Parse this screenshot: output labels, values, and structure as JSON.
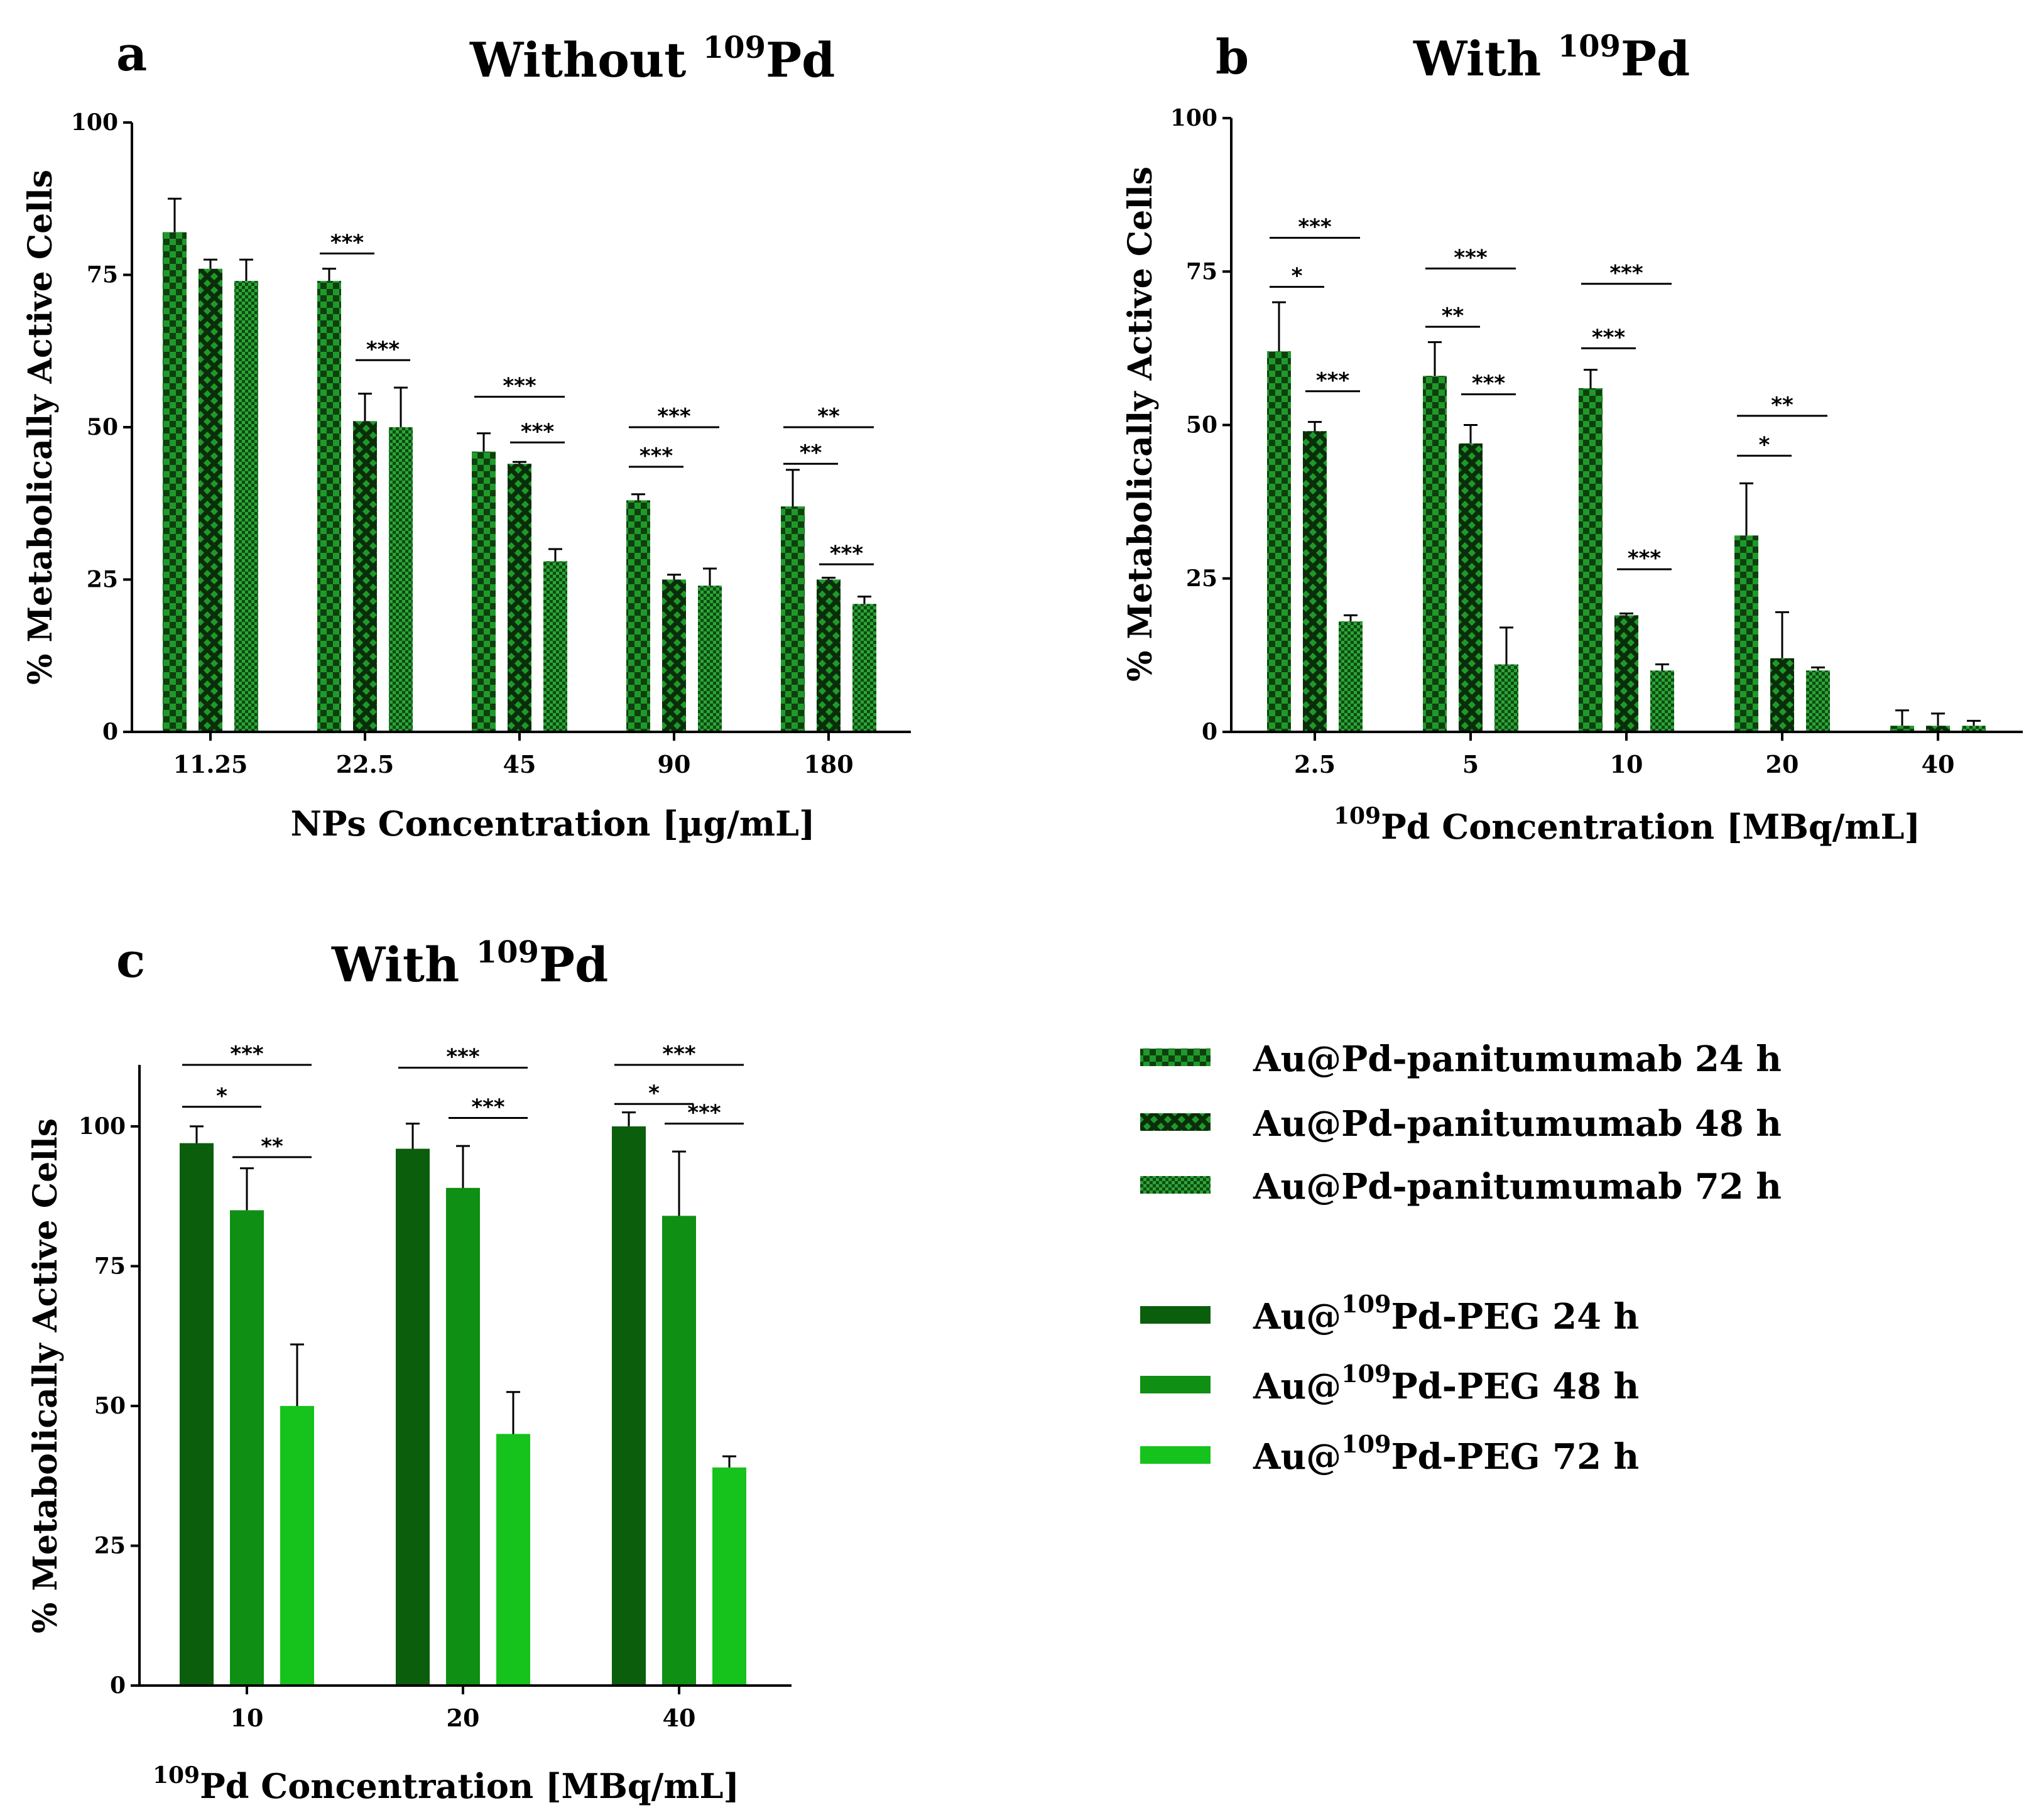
{
  "colors": {
    "dark": "#0b5e0b",
    "mid": "#0f8f14",
    "light": "#16c21c",
    "pattern_dark": "#0f4f0f",
    "pattern_light": "#1f9a2a",
    "axis": "#000000"
  },
  "chart_data": [
    {
      "panel": "a",
      "type": "bar",
      "title": "Without ",
      "title_sup": "109",
      "title_suffix": "Pd",
      "xlabel": "NPs Concentration [µg/mL]",
      "ylabel": "% Metabolically Active Cells",
      "ylim": [
        0,
        100
      ],
      "yticks": [
        "0",
        "25",
        "50",
        "75",
        "100"
      ],
      "categories": [
        "11.25",
        "22.5",
        "45",
        "90",
        "180"
      ],
      "series": [
        {
          "name": "Au@Pd-panitumumab 24 h",
          "pattern": "checker",
          "values": [
            82,
            74,
            46,
            38,
            37
          ],
          "errors": [
            5.5,
            2,
            3,
            1,
            6
          ]
        },
        {
          "name": "Au@Pd-panitumumab 48 h",
          "pattern": "cross",
          "values": [
            76,
            51,
            44,
            25,
            25
          ],
          "errors": [
            1.5,
            4.5,
            0.3,
            0.8,
            0.3
          ]
        },
        {
          "name": "Au@Pd-panitumumab 72 h",
          "pattern": "small",
          "values": [
            74,
            50,
            28,
            24,
            21
          ],
          "errors": [
            3.5,
            6.5,
            2,
            2.8,
            1.2
          ]
        }
      ],
      "significance": [
        {
          "group": 1,
          "from": 0,
          "to": 1,
          "y": 78.5,
          "label": "***"
        },
        {
          "group": 1,
          "from": 1,
          "to": 2,
          "y": 61,
          "label": "***"
        },
        {
          "group": 2,
          "from": 0,
          "to": 2,
          "y": 55,
          "label": "***"
        },
        {
          "group": 2,
          "from": 1,
          "to": 2,
          "y": 47.5,
          "label": "***"
        },
        {
          "group": 3,
          "from": 0,
          "to": 2,
          "y": 50,
          "label": "***"
        },
        {
          "group": 3,
          "from": 0,
          "to": 1,
          "y": 43.5,
          "label": "***"
        },
        {
          "group": 4,
          "from": 0,
          "to": 2,
          "y": 50,
          "label": "**"
        },
        {
          "group": 4,
          "from": 0,
          "to": 1,
          "y": 44,
          "label": "**"
        },
        {
          "group": 4,
          "from": 1,
          "to": 2,
          "y": 27.5,
          "label": "***"
        }
      ]
    },
    {
      "panel": "b",
      "type": "bar",
      "title": "With ",
      "title_sup": "109",
      "title_suffix": "Pd",
      "xlabel": "Pd Concentration [MBq/mL]",
      "xlabel_sup": "109",
      "ylabel": "% Metabolically Active Cells",
      "ylim": [
        0,
        100
      ],
      "yticks": [
        "0",
        "25",
        "50",
        "75",
        "100"
      ],
      "categories": [
        "2.5",
        "5",
        "10",
        "20",
        "40"
      ],
      "series": [
        {
          "name": "Au@Pd-panitumumab 24 h",
          "pattern": "checker",
          "values": [
            62,
            58,
            56,
            32,
            1
          ],
          "errors": [
            8,
            5.5,
            3,
            8.5,
            2.5
          ]
        },
        {
          "name": "Au@Pd-panitumumab 48 h",
          "pattern": "cross",
          "values": [
            49,
            47,
            19,
            12,
            1
          ],
          "errors": [
            1.5,
            3,
            0.3,
            7.5,
            2
          ]
        },
        {
          "name": "Au@Pd-panitumumab 72 h",
          "pattern": "small",
          "values": [
            18,
            11,
            10,
            10,
            1
          ],
          "errors": [
            1,
            6,
            1,
            0.5,
            0.8
          ]
        }
      ],
      "significance": [
        {
          "group": 0,
          "from": 0,
          "to": 2,
          "y": 80.5,
          "label": "***"
        },
        {
          "group": 0,
          "from": 0,
          "to": 1,
          "y": 72.5,
          "label": "*"
        },
        {
          "group": 0,
          "from": 1,
          "to": 2,
          "y": 55.5,
          "label": "***"
        },
        {
          "group": 1,
          "from": 0,
          "to": 2,
          "y": 75.5,
          "label": "***"
        },
        {
          "group": 1,
          "from": 0,
          "to": 1,
          "y": 66,
          "label": "**"
        },
        {
          "group": 1,
          "from": 1,
          "to": 2,
          "y": 55,
          "label": "***"
        },
        {
          "group": 2,
          "from": 0,
          "to": 2,
          "y": 73,
          "label": "***"
        },
        {
          "group": 2,
          "from": 0,
          "to": 1,
          "y": 62.5,
          "label": "***"
        },
        {
          "group": 2,
          "from": 1,
          "to": 2,
          "y": 26.5,
          "label": "***"
        },
        {
          "group": 3,
          "from": 0,
          "to": 2,
          "y": 51.5,
          "label": "**"
        },
        {
          "group": 3,
          "from": 0,
          "to": 1,
          "y": 45,
          "label": "*"
        }
      ]
    },
    {
      "panel": "c",
      "type": "bar",
      "title": "With ",
      "title_sup": "109",
      "title_suffix": "Pd",
      "xlabel": "Pd Concentration [MBq/mL]",
      "xlabel_sup": "109",
      "ylabel": "% Metabolically Active Cells",
      "ylim": [
        0,
        100
      ],
      "yticks": [
        "0",
        "25",
        "50",
        "75",
        "100"
      ],
      "categories": [
        "10",
        "20",
        "40"
      ],
      "series": [
        {
          "name": "Au@109Pd-PEG 24 h",
          "pattern": "solid-dark",
          "values": [
            97,
            96,
            100
          ],
          "errors": [
            3,
            4.5,
            2.5
          ]
        },
        {
          "name": "Au@109Pd-PEG 48 h",
          "pattern": "solid-mid",
          "values": [
            85,
            89,
            84
          ],
          "errors": [
            7.5,
            7.5,
            11.5
          ]
        },
        {
          "name": "Au@109Pd-PEG 72 h",
          "pattern": "solid-light",
          "values": [
            50,
            45,
            39
          ],
          "errors": [
            11,
            7.5,
            2
          ]
        }
      ],
      "significance": [
        {
          "group": 0,
          "from": 0,
          "to": 2,
          "y": 111,
          "label": "***"
        },
        {
          "group": 0,
          "from": 0,
          "to": 1,
          "y": 103.5,
          "label": "*"
        },
        {
          "group": 0,
          "from": 1,
          "to": 2,
          "y": 94.5,
          "label": "**"
        },
        {
          "group": 1,
          "from": 0,
          "to": 2,
          "y": 110.5,
          "label": "***"
        },
        {
          "group": 1,
          "from": 1,
          "to": 2,
          "y": 101.5,
          "label": "***"
        },
        {
          "group": 2,
          "from": 0,
          "to": 2,
          "y": 111,
          "label": "***"
        },
        {
          "group": 2,
          "from": 0,
          "to": 1,
          "y": 104,
          "label": "*"
        },
        {
          "group": 2,
          "from": 1,
          "to": 2,
          "y": 100.5,
          "label": "***"
        }
      ]
    }
  ],
  "legend": {
    "items": [
      {
        "pre": "Au@Pd-panitumumab 24 h",
        "sup": "",
        "post": "",
        "pattern": "checker"
      },
      {
        "pre": "Au@Pd-panitumumab 48 h",
        "sup": "",
        "post": "",
        "pattern": "cross"
      },
      {
        "pre": "Au@Pd-panitumumab 72 h",
        "sup": "",
        "post": "",
        "pattern": "small"
      },
      {
        "pre": "Au@",
        "sup": "109",
        "post": "Pd-PEG 24 h",
        "pattern": "solid-dark"
      },
      {
        "pre": "Au@",
        "sup": "109",
        "post": "Pd-PEG 48 h",
        "pattern": "solid-mid"
      },
      {
        "pre": "Au@",
        "sup": "109",
        "post": "Pd-PEG 72 h",
        "pattern": "solid-light"
      }
    ]
  }
}
